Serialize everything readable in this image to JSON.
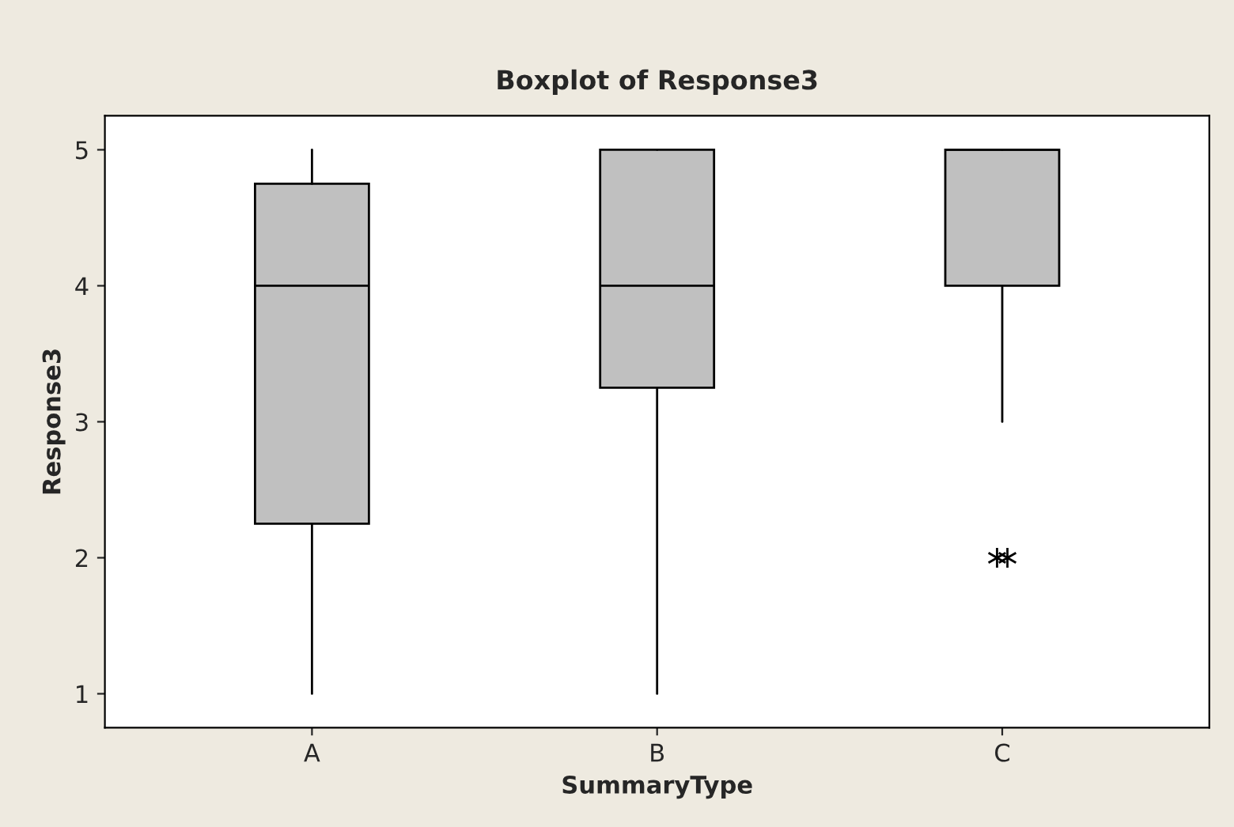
{
  "chart_data": {
    "type": "box",
    "title": "Boxplot of Response3",
    "xlabel": "SummaryType",
    "ylabel": "Response3",
    "categories": [
      "A",
      "B",
      "C"
    ],
    "color": "#c0c0c0",
    "boxes": [
      {
        "low": 1,
        "q1": 2.25,
        "median": 4,
        "q3": 4.75,
        "high": 5
      },
      {
        "low": 1,
        "q1": 3.25,
        "median": 4,
        "q3": 5,
        "high": 5
      },
      {
        "low": 3,
        "q1": 4,
        "median": 5,
        "q3": 5,
        "high": 5,
        "outliers": [
          2,
          2
        ]
      }
    ],
    "ylim": [
      0.75,
      5.25
    ],
    "yticks": [
      1,
      2,
      3,
      4,
      5
    ],
    "grid": false,
    "legend": false
  }
}
